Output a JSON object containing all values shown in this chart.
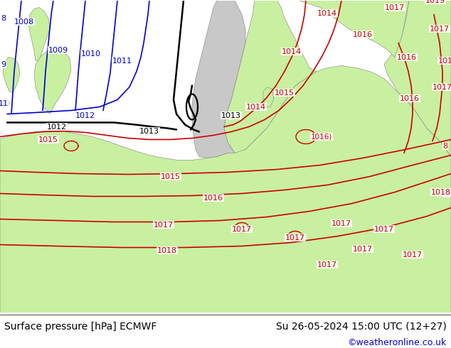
{
  "title_left": "Surface pressure [hPa] ECMWF",
  "title_right": "Su 26-05-2024 15:00 UTC (12+27)",
  "credit": "©weatheronline.co.uk",
  "sea_color": "#c8c8c8",
  "land_color": "#c8f0a0",
  "fig_width": 6.34,
  "fig_height": 4.9,
  "dpi": 100,
  "bottom_bar_color": "#ffffff",
  "blue": "#0000cc",
  "black": "#000000",
  "red": "#cc0000",
  "gray_border": "#808080",
  "title_fontsize": 10,
  "credit_fontsize": 9,
  "credit_color": "#0000cc"
}
